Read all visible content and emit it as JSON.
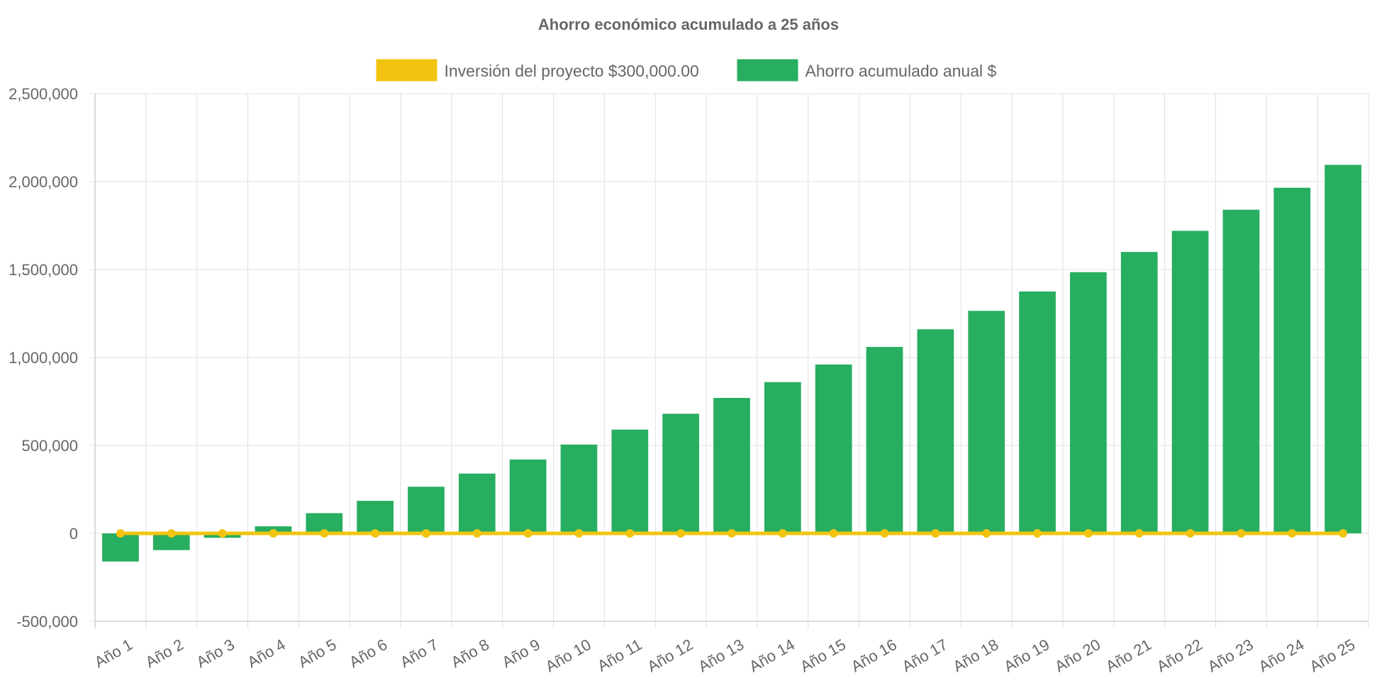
{
  "chart_data": {
    "type": "bar",
    "title": "Ahorro económico acumulado a 25 años",
    "legend_position": "top",
    "grid": true,
    "ylim": [
      -500000,
      2500000
    ],
    "y_ticks": [
      "2,500,000",
      "2,000,000",
      "1,500,000",
      "1,000,000",
      "500,000",
      "0",
      "-500,000"
    ],
    "y_tick_values": [
      2500000,
      2000000,
      1500000,
      1000000,
      500000,
      0,
      -500000
    ],
    "categories": [
      "Año 1",
      "Año 2",
      "Año 3",
      "Año 4",
      "Año 5",
      "Año 6",
      "Año 7",
      "Año 8",
      "Año 9",
      "Año 10",
      "Año 11",
      "Año 12",
      "Año 13",
      "Año 14",
      "Año 15",
      "Año 16",
      "Año 17",
      "Año 18",
      "Año 19",
      "Año 20",
      "Año 21",
      "Año 22",
      "Año 23",
      "Año 24",
      "Año 25"
    ],
    "series": [
      {
        "name": "Inversión del proyecto $300,000.00",
        "type": "line",
        "color": "#f2c40f",
        "values": [
          0,
          0,
          0,
          0,
          0,
          0,
          0,
          0,
          0,
          0,
          0,
          0,
          0,
          0,
          0,
          0,
          0,
          0,
          0,
          0,
          0,
          0,
          0,
          0,
          0
        ]
      },
      {
        "name": "Ahorro acumulado anual $",
        "type": "bar",
        "color": "#27ae60",
        "values": [
          -160000,
          -95000,
          -25000,
          40000,
          115000,
          185000,
          265000,
          340000,
          420000,
          505000,
          590000,
          680000,
          770000,
          860000,
          960000,
          1060000,
          1160000,
          1265000,
          1375000,
          1485000,
          1600000,
          1720000,
          1840000,
          1965000,
          2095000
        ]
      }
    ]
  }
}
